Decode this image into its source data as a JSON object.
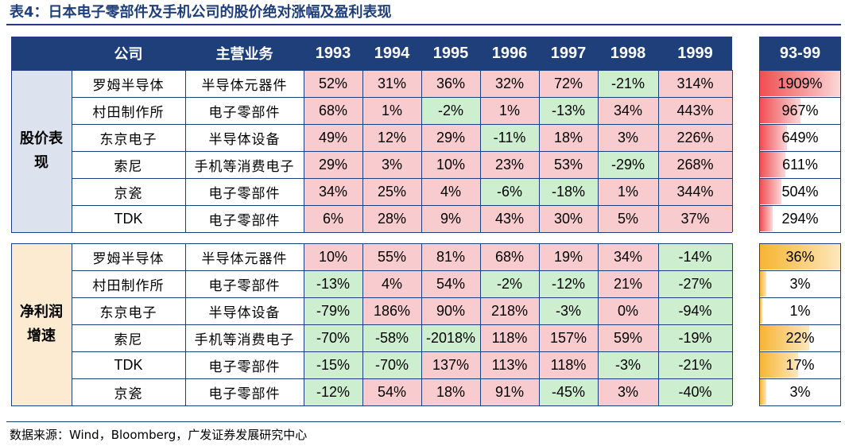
{
  "title": "表4：日本电子零部件及手机公司的股价绝对涨幅及盈利表现",
  "source": "数据来源：Wind，Bloomberg，广发证券发展研究中心",
  "colors": {
    "header_bg": "#1F3F7A",
    "positive_bg": "#F8CCCE",
    "negative_bg": "#CDEFCF",
    "price_bar": "#F04E52",
    "profit_bar": "#F6B532"
  },
  "table": {
    "headers": {
      "company": "公司",
      "business": "主营业务",
      "years": [
        "1993",
        "1994",
        "1995",
        "1996",
        "1997",
        "1998",
        "1999"
      ],
      "cumulative": "93-99"
    },
    "groups": [
      {
        "label_lines": [
          "股价表",
          "现"
        ],
        "rows": [
          {
            "company": "罗姆半导体",
            "business": "半导体元器件",
            "values": [
              "52%",
              "31%",
              "36%",
              "32%",
              "72%",
              "-21%",
              "314%"
            ],
            "cumulative": "1909%",
            "cumulative_value": 1909
          },
          {
            "company": "村田制作所",
            "business": "电子零部件",
            "values": [
              "68%",
              "1%",
              "-2%",
              "1%",
              "-13%",
              "34%",
              "443%"
            ],
            "cumulative": "967%",
            "cumulative_value": 967
          },
          {
            "company": "东京电子",
            "business": "半导体设备",
            "values": [
              "49%",
              "12%",
              "29%",
              "-11%",
              "18%",
              "3%",
              "226%"
            ],
            "cumulative": "649%",
            "cumulative_value": 649
          },
          {
            "company": "索尼",
            "business": "手机等消费电子",
            "values": [
              "29%",
              "3%",
              "10%",
              "23%",
              "53%",
              "-29%",
              "268%"
            ],
            "cumulative": "611%",
            "cumulative_value": 611
          },
          {
            "company": "京瓷",
            "business": "电子零部件",
            "values": [
              "34%",
              "25%",
              "4%",
              "-6%",
              "-18%",
              "1%",
              "344%"
            ],
            "cumulative": "504%",
            "cumulative_value": 504
          },
          {
            "company": "TDK",
            "business": "电子零部件",
            "values": [
              "6%",
              "28%",
              "9%",
              "43%",
              "30%",
              "5%",
              "37%"
            ],
            "cumulative": "294%",
            "cumulative_value": 294
          }
        ]
      },
      {
        "label_lines": [
          "净利润",
          "增速"
        ],
        "rows": [
          {
            "company": "罗姆半导体",
            "business": "半导体元器件",
            "values": [
              "10%",
              "55%",
              "81%",
              "68%",
              "19%",
              "34%",
              "-14%"
            ],
            "cumulative": "36%",
            "cumulative_value": 36
          },
          {
            "company": "村田制作所",
            "business": "电子零部件",
            "values": [
              "-13%",
              "4%",
              "54%",
              "-2%",
              "-12%",
              "21%",
              "-27%"
            ],
            "cumulative": "3%",
            "cumulative_value": 3
          },
          {
            "company": "东京电子",
            "business": "半导体设备",
            "values": [
              "-79%",
              "186%",
              "90%",
              "218%",
              "-3%",
              "0%",
              "-94%"
            ],
            "cumulative": "1%",
            "cumulative_value": 1
          },
          {
            "company": "索尼",
            "business": "手机等消费电子",
            "values": [
              "-70%",
              "-58%",
              "-2018%",
              "118%",
              "157%",
              "59%",
              "-19%"
            ],
            "cumulative": "22%",
            "cumulative_value": 22
          },
          {
            "company": "TDK",
            "business": "电子零部件",
            "values": [
              "-15%",
              "-70%",
              "137%",
              "113%",
              "118%",
              "-3%",
              "-21%"
            ],
            "cumulative": "17%",
            "cumulative_value": 17
          },
          {
            "company": "京瓷",
            "business": "电子零部件",
            "values": [
              "-12%",
              "54%",
              "18%",
              "91%",
              "-45%",
              "3%",
              "-40%"
            ],
            "cumulative": "3%",
            "cumulative_value": 3
          }
        ]
      }
    ]
  }
}
